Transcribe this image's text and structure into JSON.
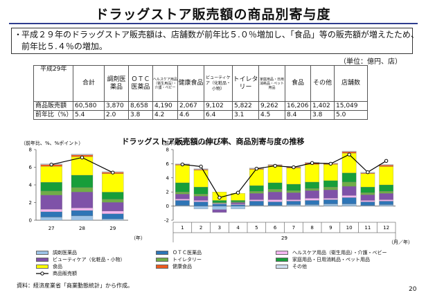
{
  "title": "ドラッグストア販売額の商品別寄与度",
  "summary": {
    "bullet": "・",
    "line1": "平成２９年のドラッグストア販売額は、店舗数が前年比５.０％増加し、「食品」等の販売額が増えたため、",
    "line2": "前年比５.４％の増加。"
  },
  "unit_note": "（単位：億円、店）",
  "table": {
    "year_label": "平成29年",
    "headers": [
      "合計",
      "調剤医薬品",
      "ＯＴＣ医薬品",
      "ヘルスケア用品（衛生用品）・介護・ベビー",
      "健康食品",
      "ビューティケア（化粧品・小物）",
      "トイレタリー",
      "家庭用品・日用消耗品・ペット用品",
      "食品",
      "その他",
      "店舗数"
    ],
    "rows": [
      {
        "label": "商品販売額",
        "values": [
          "60,580",
          "3,870",
          "8,658",
          "4,190",
          "2,067",
          "9,102",
          "5,822",
          "9,262",
          "16,206",
          "1,402",
          "15,049"
        ]
      },
      {
        "label": "前年比（%）",
        "values": [
          "5.4",
          "2.0",
          "3.8",
          "4.2",
          "4.6",
          "6.4",
          "3.1",
          "4.5",
          "8.4",
          "3.8",
          "5.0"
        ]
      }
    ]
  },
  "chart_section_title": "ドラッグストア販売額の伸び率、商品別寄与度の推移",
  "colors": {
    "調剤医薬品": "#9dc3e6",
    "ＯＴＣ医薬品": "#2e75b6",
    "ヘルスケア用品（衛生用品）・介護・ベビー": "#f4b6f0",
    "ビューティケア（化粧品・小物）": "#7f52a8",
    "トイレタリー": "#70ad47",
    "家庭用品・日用消耗品・ペット用品": "#179e3a",
    "食品": "#ffff00",
    "健康食品": "#ed5a1e",
    "その他": "#d0dff0",
    "line": "#000000"
  },
  "chart_data": [
    {
      "type": "bar",
      "stacked": true,
      "axis_note": "（前年比、%、%ポイント）",
      "x_unit": "（年）",
      "categories": [
        "27",
        "28",
        "29"
      ],
      "ylim": [
        0,
        8
      ],
      "yticks": [
        0,
        2,
        4,
        6,
        8
      ],
      "series": [
        {
          "name": "調剤医薬品",
          "values": [
            0.35,
            0.5,
            0.13
          ]
        },
        {
          "name": "ＯＴＣ医薬品",
          "values": [
            0.6,
            0.6,
            0.6
          ]
        },
        {
          "name": "ヘルスケア用品（衛生用品）・介護・ベビー",
          "values": [
            0.3,
            0.3,
            0.3
          ]
        },
        {
          "name": "ビューティケア（化粧品・小物）",
          "values": [
            1.6,
            1.8,
            1.0
          ]
        },
        {
          "name": "トイレタリー",
          "values": [
            0.45,
            0.5,
            0.35
          ]
        },
        {
          "name": "家庭用品・日用消耗品・ペット用品",
          "values": [
            1.0,
            1.4,
            0.8
          ]
        },
        {
          "name": "食品",
          "values": [
            1.8,
            2.1,
            2.1
          ]
        },
        {
          "name": "健康食品",
          "values": [
            0.2,
            0.2,
            0.15
          ]
        },
        {
          "name": "その他",
          "values": [
            0.1,
            0.1,
            0.07
          ]
        },
        {
          "name": "商品販売額",
          "type": "line",
          "values": [
            6.3,
            7.1,
            5.4
          ]
        }
      ]
    },
    {
      "type": "bar",
      "stacked": true,
      "axis_note": "（前年同月比、%、%ポイント）",
      "x_unit": "（月／年）",
      "year_label": "29",
      "categories": [
        "1",
        "2",
        "3",
        "4",
        "5",
        "6",
        "7",
        "8",
        "9",
        "10",
        "11",
        "12"
      ],
      "ylim": [
        -2,
        8
      ],
      "yticks": [
        -2,
        0,
        2,
        4,
        6,
        8
      ],
      "series": [
        {
          "name": "調剤医薬品",
          "values": [
            0.1,
            -0.4,
            -0.5,
            -0.4,
            0.1,
            0.1,
            0.2,
            0.2,
            0.3,
            0.3,
            0.1,
            0.2
          ]
        },
        {
          "name": "ＯＴＣ医薬品",
          "values": [
            0.7,
            0.6,
            0.3,
            0.2,
            0.6,
            0.5,
            0.5,
            0.6,
            0.6,
            0.9,
            0.5,
            0.5
          ]
        },
        {
          "name": "ヘルスケア用品（衛生用品）・介護・ベビー",
          "values": [
            0.2,
            0.2,
            0.1,
            0.1,
            0.2,
            0.3,
            0.2,
            0.3,
            0.2,
            0.3,
            0.2,
            0.2
          ]
        },
        {
          "name": "ビューティケア（化粧品・小物）",
          "values": [
            0.7,
            0.6,
            -0.4,
            0.2,
            0.9,
            1.1,
            1.0,
            1.1,
            1.2,
            1.3,
            0.8,
            0.9
          ]
        },
        {
          "name": "トイレタリー",
          "values": [
            0.3,
            0.3,
            0.1,
            0.1,
            0.3,
            0.4,
            0.3,
            0.3,
            0.4,
            0.6,
            0.3,
            0.3
          ]
        },
        {
          "name": "家庭用品・日用消耗品・ペット用品",
          "values": [
            1.3,
            1.0,
            0.3,
            0.2,
            0.8,
            0.9,
            0.9,
            0.9,
            0.9,
            1.3,
            0.8,
            0.9
          ]
        },
        {
          "name": "食品",
          "values": [
            2.5,
            2.4,
            1.2,
            1.0,
            2.3,
            2.4,
            2.3,
            2.5,
            2.3,
            2.8,
            1.9,
            2.6
          ]
        },
        {
          "name": "健康食品",
          "values": [
            0.1,
            0.1,
            0.0,
            0.0,
            0.1,
            0.1,
            0.1,
            0.2,
            0.1,
            0.2,
            0.1,
            0.2
          ]
        },
        {
          "name": "その他",
          "values": [
            0.1,
            0.1,
            0.0,
            0.0,
            0.1,
            0.1,
            0.1,
            0.1,
            0.1,
            0.1,
            0.1,
            0.1
          ]
        },
        {
          "name": "商品販売額",
          "type": "line",
          "values": [
            5.9,
            5.6,
            1.2,
            1.9,
            5.3,
            5.7,
            5.5,
            6.1,
            6.0,
            7.3,
            4.8,
            6.4
          ]
        }
      ]
    }
  ],
  "legend": [
    {
      "label": "調剤医薬品",
      "key": "調剤医薬品"
    },
    {
      "label": "ＯＴＣ医薬品",
      "key": "ＯＴＣ医薬品"
    },
    {
      "label": "ヘルスケア用品（衛生用品）・介護・ベビー",
      "key": "ヘルスケア用品（衛生用品）・介護・ベビー"
    },
    {
      "label": "ビューティケア（化粧品・小物）",
      "key": "ビューティケア（化粧品・小物）"
    },
    {
      "label": "トイレタリー",
      "key": "トイレタリー"
    },
    {
      "label": "家庭用品・日用消耗品・ペット用品",
      "key": "家庭用品・日用消耗品・ペット用品"
    },
    {
      "label": "食品",
      "key": "食品"
    },
    {
      "label": "健康食品",
      "key": "健康食品"
    },
    {
      "label": "その他",
      "key": "その他"
    },
    {
      "label": "商品販売額",
      "key": "line"
    }
  ],
  "source": "資料：経済産業省「商業動態統計」から作成。",
  "page_number": "20"
}
